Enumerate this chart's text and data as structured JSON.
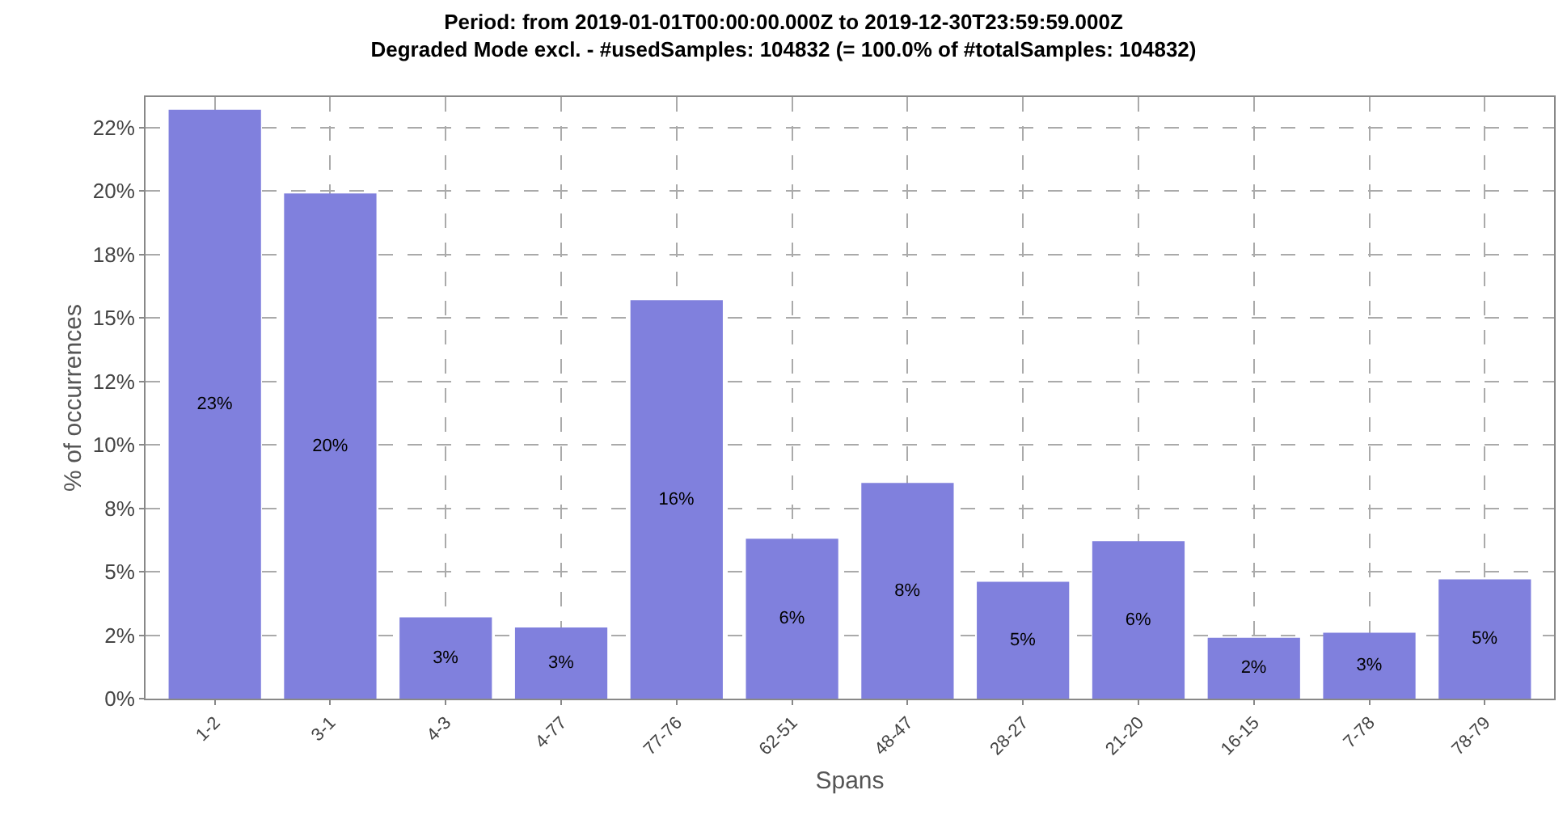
{
  "chart_data": {
    "type": "bar",
    "title": "Period: from 2019-01-01T00:00:00.000Z to 2019-12-30T23:59:59.000Z",
    "subtitle": "Degraded Mode excl. - #usedSamples: 104832 (= 100.0% of #totalSamples: 104832)",
    "xlabel": "Spans",
    "ylabel": "% of occurrences",
    "categories": [
      "1-2",
      "3-1",
      "4-3",
      "4-77",
      "77-76",
      "62-51",
      "48-47",
      "28-27",
      "21-20",
      "16-15",
      "7-78",
      "78-79"
    ],
    "values": [
      23.2,
      19.9,
      3.2,
      2.8,
      15.7,
      6.3,
      8.5,
      4.6,
      6.2,
      2.4,
      2.6,
      4.7
    ],
    "value_labels": [
      "23%",
      "20%",
      "3%",
      "3%",
      "16%",
      "6%",
      "8%",
      "5%",
      "6%",
      "2%",
      "3%",
      "5%"
    ],
    "color": "#8080dd",
    "ylim": [
      0,
      23.7
    ],
    "yticks": [
      {
        "value": 0,
        "label": "0%"
      },
      {
        "value": 2.5,
        "label": "2%"
      },
      {
        "value": 5,
        "label": "5%"
      },
      {
        "value": 7.5,
        "label": "8%"
      },
      {
        "value": 10,
        "label": "10%"
      },
      {
        "value": 12.5,
        "label": "12%"
      },
      {
        "value": 15,
        "label": "15%"
      },
      {
        "value": 17.5,
        "label": "18%"
      },
      {
        "value": 20,
        "label": "20%"
      },
      {
        "value": 22.5,
        "label": "22%"
      }
    ],
    "grid": true
  }
}
